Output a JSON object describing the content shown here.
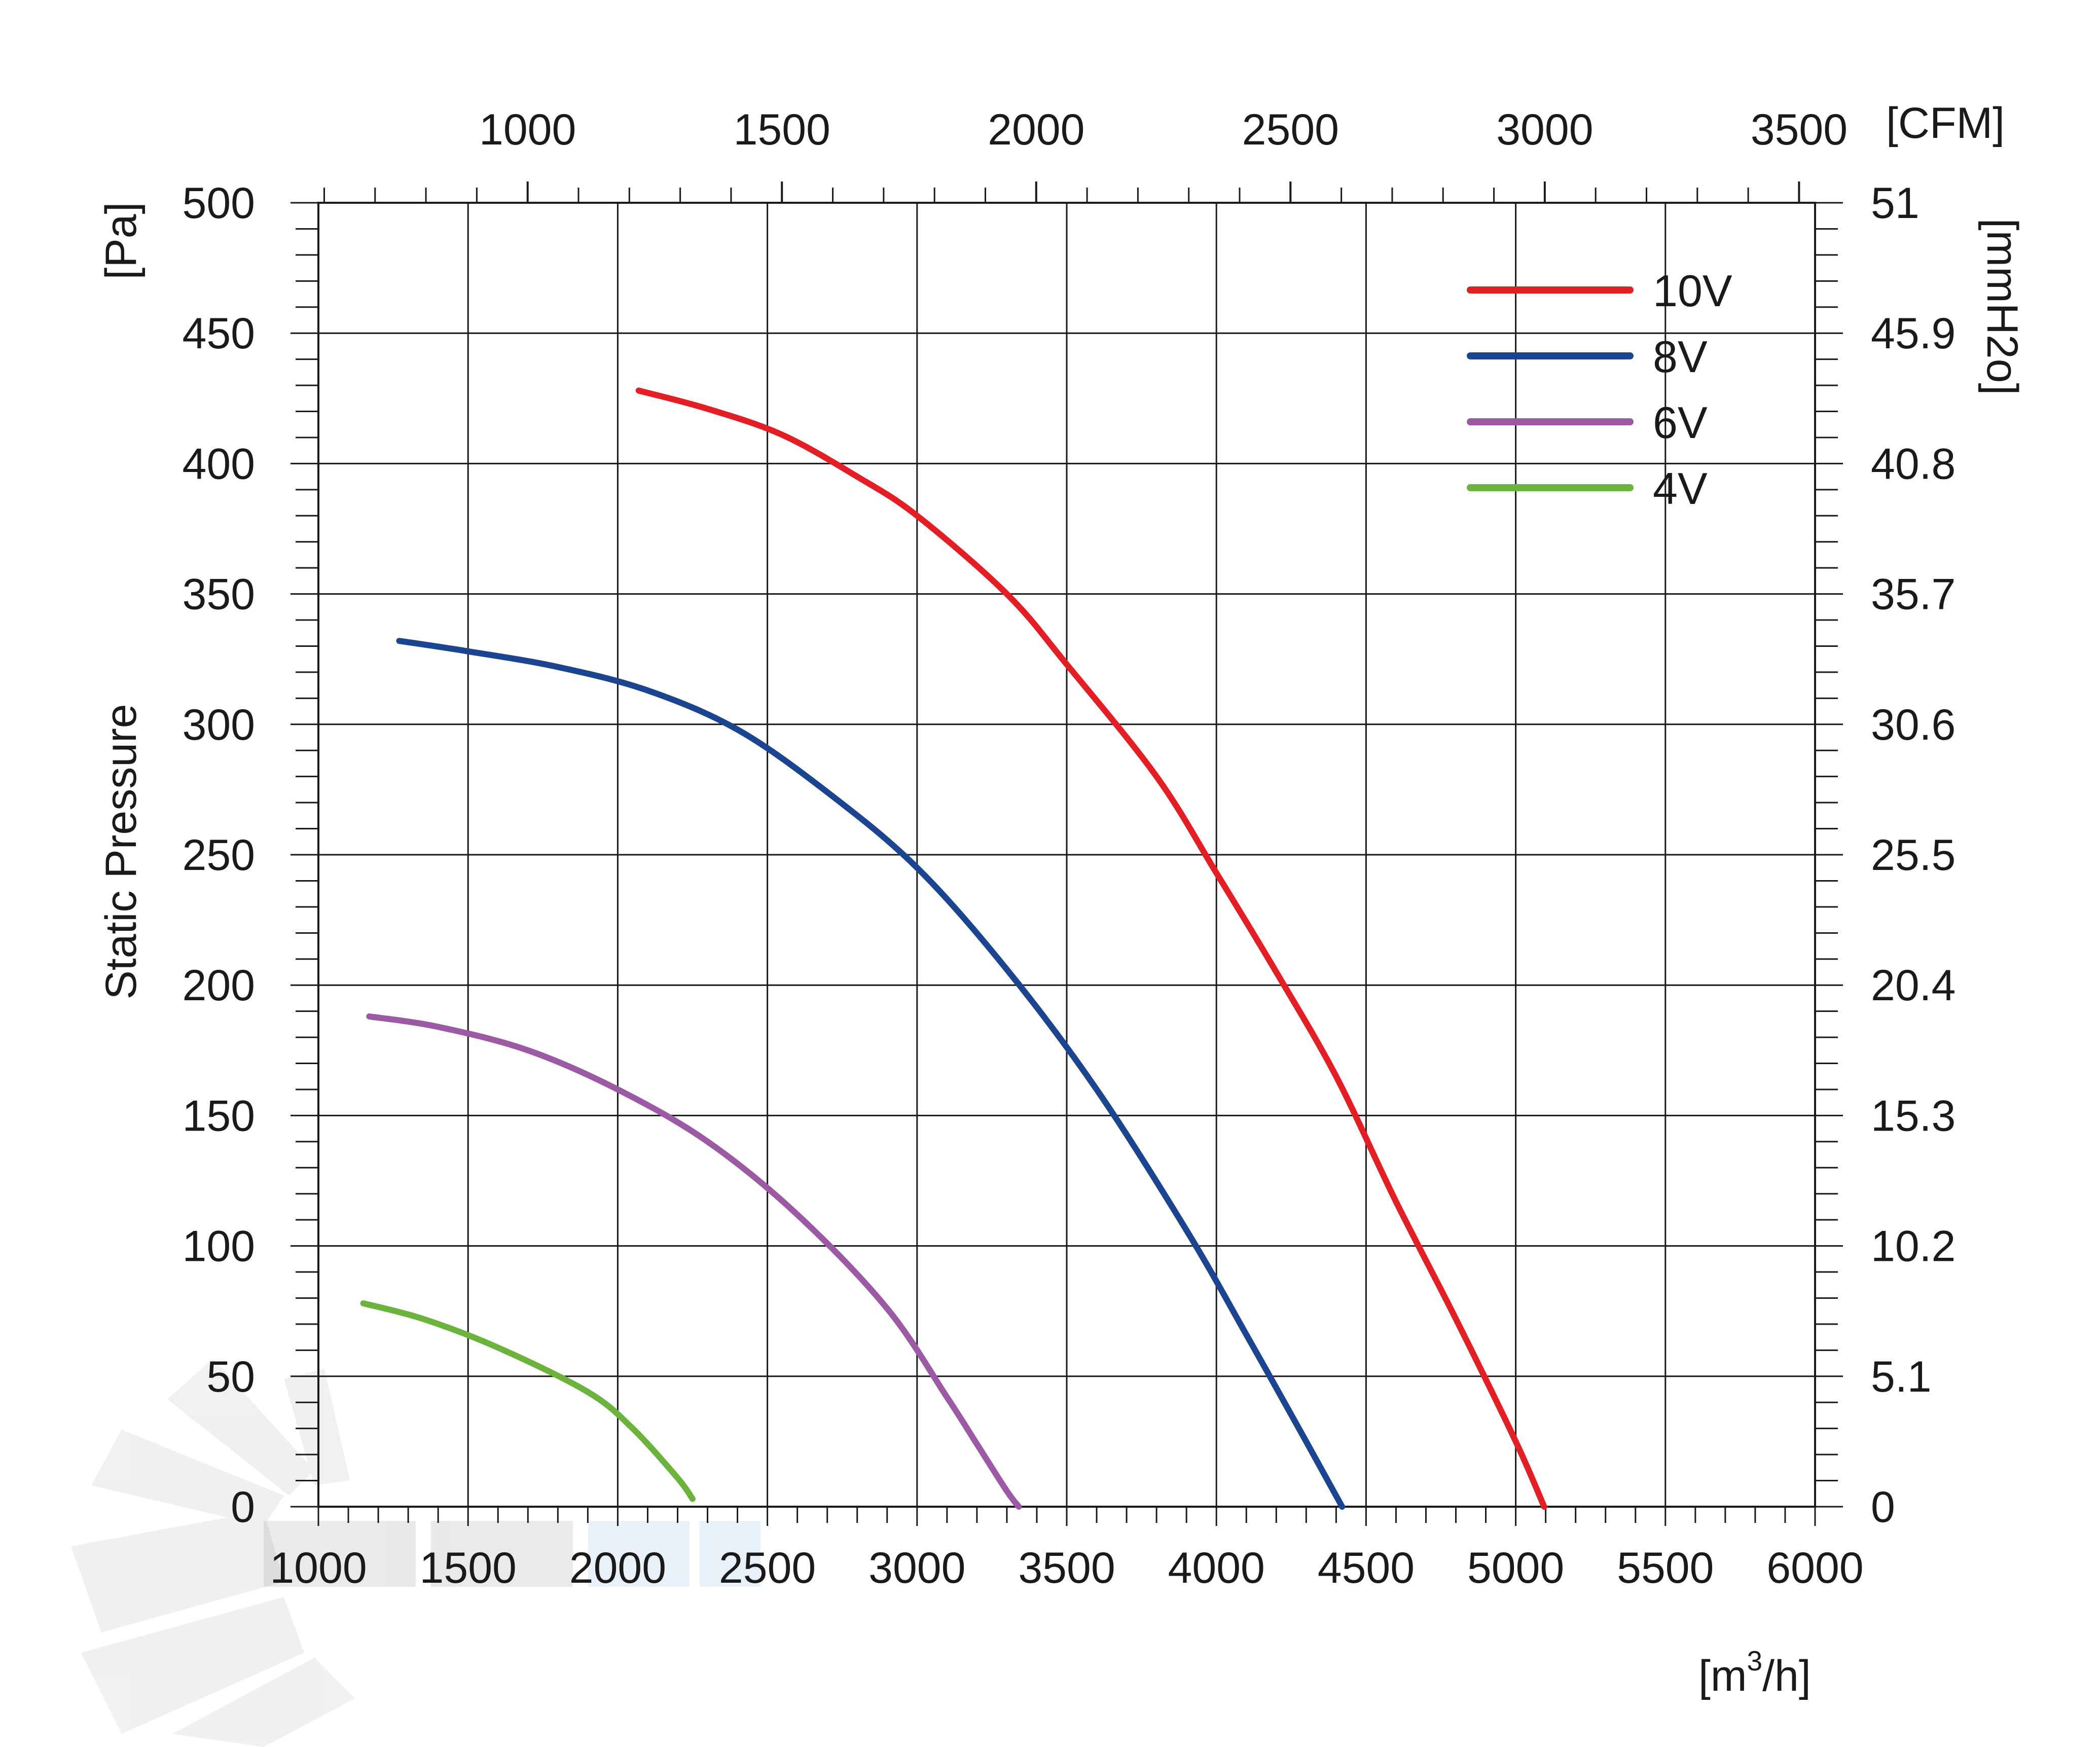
{
  "chart_data": {
    "type": "line",
    "title": "",
    "ylabel": "Static Pressure",
    "y_unit": "[Pa]",
    "x_unit": "[m3/h]",
    "x_unit_base": "[m",
    "x_unit_sup": "3",
    "x_unit_tail": "/h]",
    "top_unit": "[CFM]",
    "right_unit": "[mmH2o]",
    "xlim": [
      1000,
      6000
    ],
    "ylim": [
      0,
      500
    ],
    "x_ticks": [
      1000,
      1500,
      2000,
      2500,
      3000,
      3500,
      4000,
      4500,
      5000,
      5500,
      6000
    ],
    "x_tick_labels": [
      "1000",
      "1500",
      "2000",
      "2500",
      "3000",
      "3500",
      "4000",
      "4500",
      "5000",
      "5500",
      "6000"
    ],
    "y_ticks": [
      0,
      50,
      100,
      150,
      200,
      250,
      300,
      350,
      400,
      450,
      500
    ],
    "y_tick_labels": [
      "0",
      "50",
      "100",
      "150",
      "200",
      "250",
      "300",
      "350",
      "400",
      "450",
      "500"
    ],
    "top_ticks_cfm": [
      1000,
      1500,
      2000,
      2500,
      3000,
      3500
    ],
    "top_tick_labels": [
      "1000",
      "1500",
      "2000",
      "2500",
      "3000",
      "3500"
    ],
    "cfm_to_m3h": 1.699,
    "right_ticks_pa": [
      0,
      50,
      100,
      150,
      200,
      250,
      300,
      350,
      400,
      450,
      500
    ],
    "right_tick_labels": [
      "0",
      "5.1",
      "10.2",
      "15.3",
      "20.4",
      "25.5",
      "30.6",
      "35.7",
      "40.8",
      "45.9",
      "51"
    ],
    "grid": true,
    "legend_position": "top-right",
    "series": [
      {
        "name": "10V",
        "color": "#e31e24",
        "x": [
          2070,
          2300,
          2550,
          2800,
          3000,
          3300,
          3500,
          3800,
          4000,
          4200,
          4400,
          4600,
          4800,
          5000,
          5095
        ],
        "y": [
          428,
          421,
          411,
          395,
          380,
          350,
          323,
          280,
          243,
          205,
          165,
          117,
          72,
          25,
          0
        ]
      },
      {
        "name": "8V",
        "color": "#1c4591",
        "x": [
          1270,
          1500,
          1800,
          2100,
          2400,
          2700,
          3000,
          3300,
          3600,
          3900,
          4100,
          4300,
          4420
        ],
        "y": [
          332,
          328,
          322,
          313,
          298,
          274,
          245,
          206,
          160,
          106,
          66,
          25,
          0
        ]
      },
      {
        "name": "6V",
        "color": "#9b5aa3",
        "x": [
          1170,
          1400,
          1700,
          2000,
          2300,
          2600,
          2900,
          3100,
          3200,
          3300,
          3340
        ],
        "y": [
          188,
          184,
          175,
          160,
          140,
          112,
          76,
          42,
          24,
          6,
          0
        ]
      },
      {
        "name": "4V",
        "color": "#6cb33e",
        "x": [
          1150,
          1350,
          1600,
          1900,
          2050,
          2200,
          2250
        ],
        "y": [
          78,
          72,
          61,
          44,
          30,
          11,
          3
        ]
      }
    ]
  }
}
